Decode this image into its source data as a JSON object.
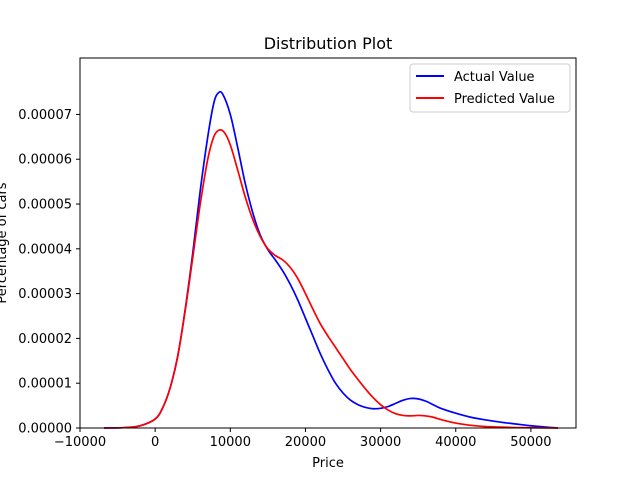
{
  "chart_data": {
    "type": "line",
    "title": "Distribution Plot",
    "xlabel": "Price",
    "ylabel": "Percentage of cars",
    "xlim": [
      -10000,
      56000
    ],
    "ylim": [
      0,
      8.26e-05
    ],
    "x_ticks": [
      -10000,
      0,
      10000,
      20000,
      30000,
      40000,
      50000
    ],
    "x_tick_labels": [
      "−10000",
      "0",
      "10000",
      "20000",
      "30000",
      "40000",
      "50000"
    ],
    "y_ticks": [
      0,
      1e-05,
      2e-05,
      3e-05,
      4e-05,
      5e-05,
      6e-05,
      7e-05
    ],
    "y_tick_labels": [
      "0.00000",
      "0.00001",
      "0.00002",
      "0.00003",
      "0.00004",
      "0.00005",
      "0.00006",
      "0.00007"
    ],
    "grid": false,
    "legend_position": "top-right",
    "series": [
      {
        "name": "Actual Value",
        "color": "#0000ff",
        "points": [
          [
            -6800,
            0
          ],
          [
            -4000,
            1e-07
          ],
          [
            -2000,
            5e-07
          ],
          [
            0,
            2e-06
          ],
          [
            1000,
            4.5e-06
          ],
          [
            2000,
            9e-06
          ],
          [
            3000,
            1.6e-05
          ],
          [
            4000,
            2.65e-05
          ],
          [
            5000,
            3.9e-05
          ],
          [
            6000,
            5.3e-05
          ],
          [
            7000,
            6.5e-05
          ],
          [
            7800,
            7.25e-05
          ],
          [
            8400,
            7.48e-05
          ],
          [
            9000,
            7.45e-05
          ],
          [
            10000,
            7e-05
          ],
          [
            11000,
            6.25e-05
          ],
          [
            12000,
            5.45e-05
          ],
          [
            13000,
            4.8e-05
          ],
          [
            14000,
            4.3e-05
          ],
          [
            15000,
            3.98e-05
          ],
          [
            16000,
            3.75e-05
          ],
          [
            17000,
            3.5e-05
          ],
          [
            18000,
            3.2e-05
          ],
          [
            19000,
            2.85e-05
          ],
          [
            20000,
            2.45e-05
          ],
          [
            21000,
            2.05e-05
          ],
          [
            22000,
            1.65e-05
          ],
          [
            23000,
            1.3e-05
          ],
          [
            24000,
            1e-05
          ],
          [
            25000,
            7.8e-06
          ],
          [
            26000,
            6.2e-06
          ],
          [
            27000,
            5.2e-06
          ],
          [
            28000,
            4.6e-06
          ],
          [
            29000,
            4.3e-06
          ],
          [
            30000,
            4.4e-06
          ],
          [
            31000,
            4.8e-06
          ],
          [
            32000,
            5.5e-06
          ],
          [
            33000,
            6.2e-06
          ],
          [
            34000,
            6.6e-06
          ],
          [
            35000,
            6.5e-06
          ],
          [
            36000,
            6e-06
          ],
          [
            37000,
            5.2e-06
          ],
          [
            38000,
            4.4e-06
          ],
          [
            40000,
            3.3e-06
          ],
          [
            42000,
            2.4e-06
          ],
          [
            44000,
            1.8e-06
          ],
          [
            46000,
            1.3e-06
          ],
          [
            48000,
            9e-07
          ],
          [
            50000,
            5e-07
          ],
          [
            52000,
            2e-07
          ],
          [
            53600,
            0
          ]
        ]
      },
      {
        "name": "Predicted Value",
        "color": "#ff0000",
        "points": [
          [
            -6800,
            0
          ],
          [
            -4000,
            1e-07
          ],
          [
            -2000,
            5e-07
          ],
          [
            0,
            2e-06
          ],
          [
            1000,
            4.5e-06
          ],
          [
            2000,
            9e-06
          ],
          [
            3000,
            1.6e-05
          ],
          [
            4000,
            2.62e-05
          ],
          [
            5000,
            3.8e-05
          ],
          [
            6000,
            5e-05
          ],
          [
            7000,
            6e-05
          ],
          [
            7800,
            6.5e-05
          ],
          [
            8500,
            6.65e-05
          ],
          [
            9200,
            6.6e-05
          ],
          [
            10000,
            6.32e-05
          ],
          [
            11000,
            5.75e-05
          ],
          [
            12000,
            5.15e-05
          ],
          [
            13000,
            4.65e-05
          ],
          [
            14000,
            4.27e-05
          ],
          [
            15000,
            4e-05
          ],
          [
            16000,
            3.85e-05
          ],
          [
            17000,
            3.75e-05
          ],
          [
            18000,
            3.58e-05
          ],
          [
            19000,
            3.33e-05
          ],
          [
            20000,
            3e-05
          ],
          [
            21000,
            2.65e-05
          ],
          [
            22000,
            2.32e-05
          ],
          [
            23000,
            2.05e-05
          ],
          [
            24000,
            1.8e-05
          ],
          [
            25000,
            1.55e-05
          ],
          [
            26000,
            1.3e-05
          ],
          [
            27000,
            1.08e-05
          ],
          [
            28000,
            8.7e-06
          ],
          [
            29000,
            6.8e-06
          ],
          [
            30000,
            5.2e-06
          ],
          [
            31000,
            4e-06
          ],
          [
            32000,
            3.2e-06
          ],
          [
            33000,
            2.8e-06
          ],
          [
            34000,
            2.7e-06
          ],
          [
            35000,
            2.8e-06
          ],
          [
            36000,
            2.7e-06
          ],
          [
            37000,
            2.4e-06
          ],
          [
            38000,
            1.9e-06
          ],
          [
            40000,
            1.1e-06
          ],
          [
            42000,
            6e-07
          ],
          [
            44000,
            3e-07
          ],
          [
            46000,
            2e-07
          ],
          [
            48000,
            1e-07
          ],
          [
            50000,
            5e-08
          ],
          [
            53600,
            0
          ]
        ]
      }
    ]
  }
}
